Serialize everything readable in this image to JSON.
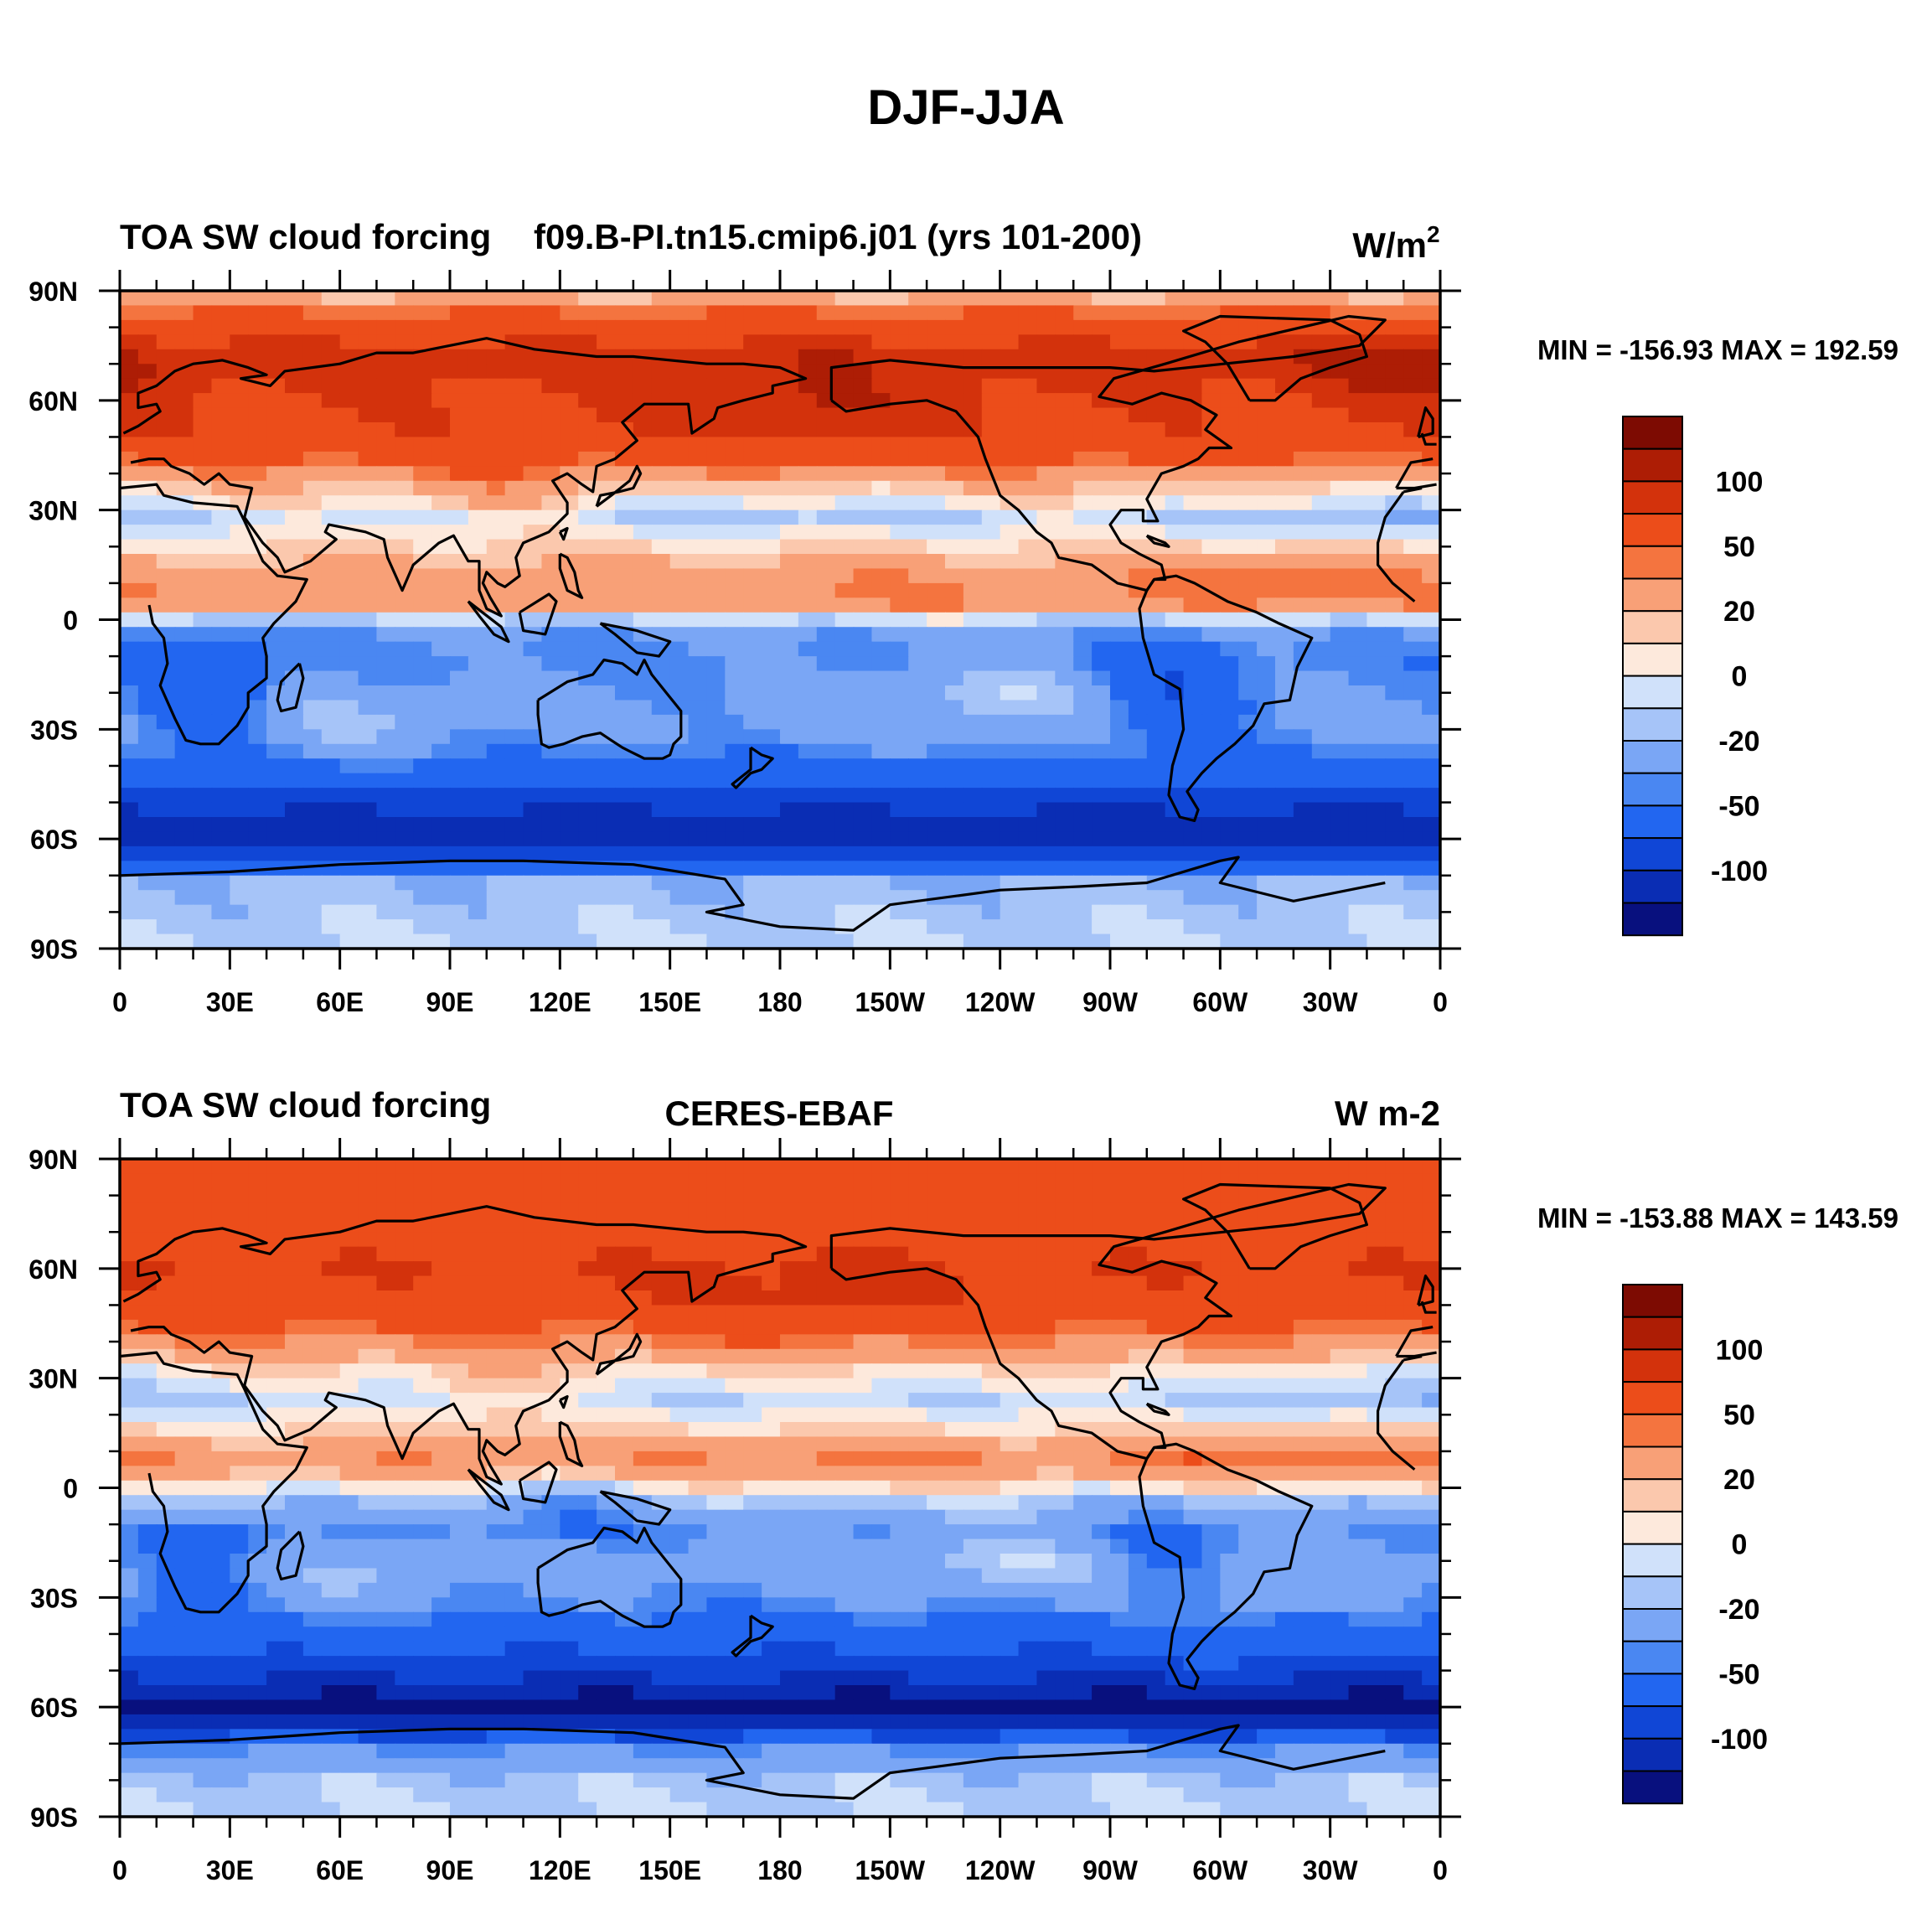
{
  "figure_title": "DJF-JJA",
  "palette": [
    "#08107e",
    "#0a2db4",
    "#1046d6",
    "#2266f0",
    "#4a87f2",
    "#7aa6f5",
    "#a6c4f8",
    "#d0e1fa",
    "#fde9dc",
    "#fbc8ad",
    "#f8a077",
    "#f4743f",
    "#ec4d1a",
    "#d3320c",
    "#ad1d05",
    "#7d0b02"
  ],
  "chart_data": [
    {
      "type": "contour-map",
      "title_left": "TOA SW cloud forcing",
      "title_center": "f09.B-PI.tn15.cmip6.j01 (yrs 101-200)",
      "units": "W/m",
      "units_sup": "2",
      "min_max_text": "MIN = -156.93 MAX = 192.59",
      "min": -156.93,
      "max": 192.59,
      "lat_ticks": [
        "90N",
        "60N",
        "30N",
        "0",
        "30S",
        "60S",
        "90S"
      ],
      "lon_ticks": [
        "0",
        "30E",
        "60E",
        "90E",
        "120E",
        "150E",
        "180",
        "150W",
        "120W",
        "90W",
        "60W",
        "30W",
        "0"
      ],
      "colorbar_labels": [
        "100",
        "50",
        "20",
        "0",
        "-20",
        "-50",
        "-100"
      ],
      "levels": [
        -120,
        -100,
        -80,
        -50,
        -40,
        -20,
        -10,
        0,
        10,
        20,
        40,
        50,
        80,
        100,
        120
      ]
    },
    {
      "type": "contour-map",
      "title_left": "TOA SW cloud forcing",
      "title_center": "CERES-EBAF",
      "units": "W m-2",
      "units_sup": "",
      "min_max_text": "MIN = -153.88 MAX = 143.59",
      "min": -153.88,
      "max": 143.59,
      "lat_ticks": [
        "90N",
        "60N",
        "30N",
        "0",
        "30S",
        "60S",
        "90S"
      ],
      "lon_ticks": [
        "0",
        "30E",
        "60E",
        "90E",
        "120E",
        "150E",
        "180",
        "150W",
        "120W",
        "90W",
        "60W",
        "30W",
        "0"
      ],
      "colorbar_labels": [
        "100",
        "50",
        "20",
        "0",
        "-20",
        "-50",
        "-100"
      ],
      "levels": [
        -120,
        -100,
        -80,
        -50,
        -40,
        -20,
        -10,
        0,
        10,
        20,
        40,
        50,
        80,
        100,
        120
      ]
    }
  ]
}
